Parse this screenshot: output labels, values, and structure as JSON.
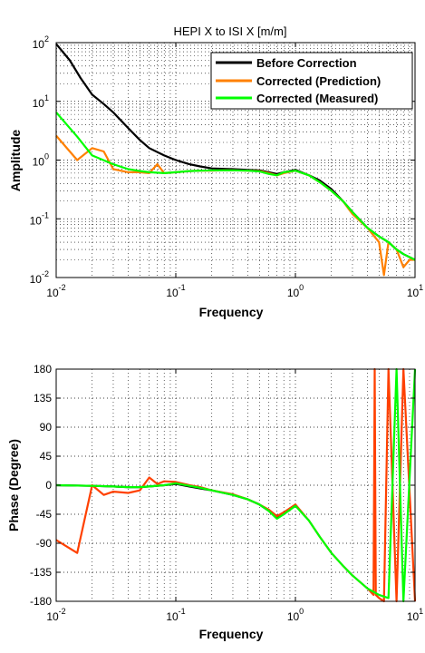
{
  "chart_data": [
    {
      "type": "line",
      "title": "HEPI X to ISI X [m/m]",
      "xlabel": "Frequency",
      "ylabel": "Amplitude",
      "xscale": "log",
      "yscale": "log",
      "xlim": [
        0.01,
        10
      ],
      "ylim": [
        0.01,
        100
      ],
      "xtick_labels": [
        "10-2",
        "10-1",
        "100",
        "101"
      ],
      "ytick_labels": [
        "10-2",
        "10-1",
        "100",
        "101",
        "102"
      ],
      "grid": "dotted, major and minor",
      "legend_position": "top-right",
      "series": [
        {
          "name": "Before Correction",
          "color": "#000000",
          "x": [
            0.01,
            0.013,
            0.016,
            0.02,
            0.025,
            0.03,
            0.04,
            0.05,
            0.06,
            0.08,
            0.1,
            0.13,
            0.16,
            0.2,
            0.3,
            0.4,
            0.5,
            0.6,
            0.7,
            0.8,
            1.0,
            1.3,
            1.6,
            2.0,
            2.5,
            3.0,
            4.0,
            5.0,
            6.0,
            7.0,
            8.0,
            10.0
          ],
          "values": [
            95,
            50,
            25,
            13,
            9,
            6.5,
            3.5,
            2.2,
            1.6,
            1.2,
            1.0,
            0.85,
            0.78,
            0.72,
            0.7,
            0.68,
            0.67,
            0.62,
            0.58,
            0.62,
            0.68,
            0.55,
            0.45,
            0.32,
            0.2,
            0.13,
            0.07,
            0.05,
            0.04,
            0.03,
            0.025,
            0.02
          ]
        },
        {
          "name": "Corrected (Prediction)",
          "color": "#ff8000",
          "x": [
            0.01,
            0.015,
            0.02,
            0.025,
            0.03,
            0.04,
            0.05,
            0.06,
            0.07,
            0.08,
            0.1,
            0.13,
            0.16,
            0.2,
            0.25,
            0.3,
            0.4,
            0.5,
            0.6,
            0.7,
            0.8,
            1.0,
            1.3,
            1.6,
            2.0,
            2.5,
            3.0,
            4.0,
            5.0,
            5.5,
            6.0,
            7.0,
            8.0,
            9.0,
            10.0
          ],
          "values": [
            2.6,
            1.0,
            1.6,
            1.4,
            0.7,
            0.62,
            0.62,
            0.6,
            0.85,
            0.6,
            0.62,
            0.65,
            0.66,
            0.66,
            0.67,
            0.67,
            0.66,
            0.65,
            0.6,
            0.55,
            0.6,
            0.66,
            0.55,
            0.42,
            0.3,
            0.2,
            0.12,
            0.07,
            0.04,
            0.011,
            0.04,
            0.03,
            0.015,
            0.02,
            0.02
          ]
        },
        {
          "name": "Corrected (Measured)",
          "color": "#00ff00",
          "x": [
            0.01,
            0.015,
            0.02,
            0.03,
            0.04,
            0.05,
            0.06,
            0.08,
            0.1,
            0.13,
            0.16,
            0.2,
            0.3,
            0.4,
            0.5,
            0.6,
            0.7,
            0.8,
            1.0,
            1.3,
            1.6,
            2.0,
            2.5,
            3.0,
            4.0,
            5.0,
            6.0,
            7.0,
            8.0,
            10.0
          ],
          "values": [
            6.5,
            2.5,
            1.2,
            0.85,
            0.7,
            0.65,
            0.62,
            0.6,
            0.62,
            0.65,
            0.66,
            0.67,
            0.67,
            0.66,
            0.64,
            0.58,
            0.55,
            0.62,
            0.66,
            0.55,
            0.42,
            0.3,
            0.2,
            0.13,
            0.07,
            0.05,
            0.04,
            0.03,
            0.025,
            0.02
          ]
        }
      ]
    },
    {
      "type": "line",
      "title": "",
      "xlabel": "Frequency",
      "ylabel": "Phase (Degree)",
      "xscale": "log",
      "yscale": "linear",
      "xlim": [
        0.01,
        10
      ],
      "ylim": [
        -180,
        180
      ],
      "xtick_labels": [
        "10-2",
        "10-1",
        "100",
        "101"
      ],
      "ytick_labels": [
        "180",
        "135",
        "90",
        "45",
        "0",
        "-45",
        "-90",
        "-135",
        "-180"
      ],
      "grid": "dotted, major and minor",
      "series": [
        {
          "name": "Before Correction",
          "color": "#000000",
          "x": [
            0.01,
            0.02,
            0.03,
            0.04,
            0.05,
            0.06,
            0.08,
            0.1,
            0.13,
            0.16,
            0.2,
            0.3,
            0.4,
            0.5,
            0.6,
            0.7,
            0.8,
            1.0
          ],
          "values": [
            0,
            -1,
            -2,
            -3,
            -3,
            -2,
            0,
            2,
            -2,
            -5,
            -8,
            -15,
            -22,
            -30,
            -40,
            -50,
            -45,
            -30
          ]
        },
        {
          "name": "Corrected (Prediction)",
          "color": "#ff4000",
          "x": [
            0.01,
            0.015,
            0.02,
            0.025,
            0.03,
            0.04,
            0.05,
            0.06,
            0.07,
            0.08,
            0.1,
            0.13,
            0.16,
            0.2,
            0.3,
            0.4,
            0.5,
            0.6,
            0.7,
            0.8,
            1.0,
            1.3,
            1.6,
            2.0,
            2.5,
            3.0,
            4.0,
            4.5,
            4.6,
            4.7,
            5.0,
            5.5,
            6.0,
            7.0,
            8.0,
            10.0
          ],
          "values": [
            -85,
            -105,
            0,
            -15,
            -10,
            -12,
            -8,
            12,
            2,
            6,
            5,
            0,
            -3,
            -8,
            -14,
            -22,
            -30,
            -38,
            -48,
            -42,
            -30,
            -55,
            -80,
            -105,
            -125,
            -140,
            -160,
            -170,
            180,
            -170,
            -175,
            -180,
            180,
            -180,
            180,
            -180
          ]
        },
        {
          "name": "Corrected (Measured)",
          "color": "#00ff00",
          "x": [
            0.01,
            0.02,
            0.03,
            0.04,
            0.05,
            0.06,
            0.08,
            0.1,
            0.13,
            0.16,
            0.2,
            0.3,
            0.4,
            0.5,
            0.6,
            0.7,
            0.8,
            1.0,
            1.3,
            1.6,
            2.0,
            2.5,
            3.0,
            4.0,
            5.0,
            6.0,
            7.0,
            8.0,
            10.0
          ],
          "values": [
            0,
            -1,
            -2,
            -3,
            -3,
            -2,
            0,
            3,
            -1,
            -4,
            -8,
            -15,
            -22,
            -30,
            -40,
            -52,
            -45,
            -32,
            -55,
            -80,
            -105,
            -125,
            -140,
            -160,
            -170,
            -175,
            180,
            -180,
            180
          ]
        }
      ]
    }
  ]
}
